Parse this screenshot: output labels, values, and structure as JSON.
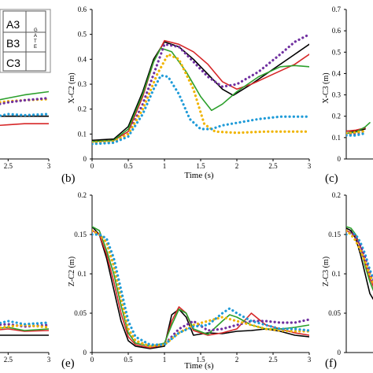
{
  "colors": {
    "black": "#000000",
    "red": "#d62728",
    "green": "#2ca02c",
    "purple": "#7030a0",
    "orange": "#f0b400",
    "cyan": "#1f9bd8"
  },
  "legend_box": {
    "labels": [
      "A3",
      "B3",
      "C3"
    ],
    "gate_letters": [
      "G",
      "A",
      "T",
      "E"
    ]
  },
  "chart_data": [
    {
      "type": "line",
      "panel_label": "(b)",
      "xlabel": "Time (s)",
      "ylabel": "X-C2 (m)",
      "xlim": [
        0,
        3
      ],
      "ylim": [
        0,
        0.6
      ],
      "xticks": [
        "0",
        "0.5",
        "1",
        "1.5",
        "2",
        "2.5",
        "3"
      ],
      "yticks": [
        "0",
        "0.1",
        "0.2",
        "0.3",
        "0.4",
        "0.5",
        "0.6"
      ],
      "series": [
        {
          "color": "black",
          "style": "solid",
          "x": [
            0,
            0.3,
            0.5,
            0.7,
            0.85,
            1.0,
            1.2,
            1.4,
            1.6,
            1.8,
            1.95,
            2.2,
            2.5,
            2.8,
            3.0
          ],
          "y": [
            0.075,
            0.08,
            0.13,
            0.27,
            0.4,
            0.47,
            0.45,
            0.4,
            0.34,
            0.28,
            0.255,
            0.3,
            0.36,
            0.42,
            0.46
          ]
        },
        {
          "color": "red",
          "style": "solid",
          "x": [
            0,
            0.3,
            0.5,
            0.7,
            0.85,
            1.0,
            1.2,
            1.4,
            1.6,
            1.8,
            2.0,
            2.2,
            2.5,
            2.8,
            3.0
          ],
          "y": [
            0.07,
            0.075,
            0.11,
            0.25,
            0.39,
            0.475,
            0.46,
            0.43,
            0.38,
            0.31,
            0.28,
            0.3,
            0.34,
            0.38,
            0.42
          ]
        },
        {
          "color": "green",
          "style": "solid",
          "x": [
            0,
            0.3,
            0.5,
            0.7,
            0.85,
            0.95,
            1.1,
            1.3,
            1.5,
            1.65,
            1.8,
            2.0,
            2.3,
            2.6,
            2.8,
            3.0
          ],
          "y": [
            0.07,
            0.075,
            0.12,
            0.26,
            0.39,
            0.445,
            0.43,
            0.35,
            0.25,
            0.195,
            0.22,
            0.27,
            0.33,
            0.37,
            0.375,
            0.37
          ]
        },
        {
          "color": "purple",
          "style": "dotted",
          "x": [
            0,
            0.3,
            0.5,
            0.7,
            0.9,
            1.0,
            1.2,
            1.4,
            1.6,
            1.8,
            2.0,
            2.3,
            2.6,
            2.8,
            3.0
          ],
          "y": [
            0.065,
            0.07,
            0.1,
            0.22,
            0.38,
            0.46,
            0.45,
            0.39,
            0.33,
            0.29,
            0.3,
            0.35,
            0.42,
            0.47,
            0.5
          ]
        },
        {
          "color": "orange",
          "style": "dotted",
          "x": [
            0,
            0.3,
            0.5,
            0.7,
            0.9,
            1.05,
            1.2,
            1.4,
            1.55,
            1.7,
            2.0,
            2.4,
            2.7,
            3.0
          ],
          "y": [
            0.065,
            0.07,
            0.1,
            0.2,
            0.34,
            0.42,
            0.4,
            0.28,
            0.14,
            0.11,
            0.105,
            0.11,
            0.11,
            0.11
          ]
        },
        {
          "color": "cyan",
          "style": "dotted",
          "x": [
            0,
            0.3,
            0.5,
            0.7,
            0.85,
            0.95,
            1.05,
            1.2,
            1.35,
            1.5,
            1.65,
            1.8,
            2.0,
            2.3,
            2.6,
            3.0
          ],
          "y": [
            0.06,
            0.065,
            0.09,
            0.18,
            0.28,
            0.335,
            0.33,
            0.26,
            0.16,
            0.12,
            0.12,
            0.135,
            0.145,
            0.16,
            0.17,
            0.17
          ]
        }
      ]
    },
    {
      "type": "line",
      "panel_label": "(e)",
      "xlabel": "Time (s)",
      "ylabel": "Z-C2 (m)",
      "xlim": [
        0,
        3
      ],
      "ylim": [
        0,
        0.2
      ],
      "xticks": [
        "0",
        "0.5",
        "1",
        "1.5",
        "2",
        "2.5",
        "3"
      ],
      "yticks": [
        "0",
        "0.05",
        "0.1",
        "0.15",
        "0.2"
      ],
      "series": [
        {
          "color": "black",
          "style": "solid",
          "x": [
            0,
            0.1,
            0.2,
            0.3,
            0.4,
            0.5,
            0.6,
            0.8,
            1.0,
            1.1,
            1.2,
            1.3,
            1.4,
            1.6,
            1.8,
            2.0,
            2.2,
            2.4,
            2.6,
            2.8,
            3.0
          ],
          "y": [
            0.16,
            0.15,
            0.12,
            0.08,
            0.04,
            0.015,
            0.008,
            0.005,
            0.008,
            0.048,
            0.055,
            0.045,
            0.022,
            0.025,
            0.024,
            0.027,
            0.028,
            0.03,
            0.027,
            0.022,
            0.02
          ]
        },
        {
          "color": "red",
          "style": "solid",
          "x": [
            0,
            0.1,
            0.2,
            0.3,
            0.4,
            0.5,
            0.6,
            0.8,
            1.0,
            1.1,
            1.2,
            1.3,
            1.4,
            1.6,
            1.8,
            2.0,
            2.2,
            2.4,
            2.6,
            2.8,
            3.0
          ],
          "y": [
            0.155,
            0.15,
            0.125,
            0.09,
            0.05,
            0.02,
            0.01,
            0.006,
            0.01,
            0.04,
            0.058,
            0.05,
            0.028,
            0.022,
            0.025,
            0.03,
            0.05,
            0.035,
            0.03,
            0.025,
            0.022
          ]
        },
        {
          "color": "green",
          "style": "solid",
          "x": [
            0,
            0.1,
            0.2,
            0.3,
            0.4,
            0.5,
            0.6,
            0.8,
            1.0,
            1.1,
            1.2,
            1.3,
            1.4,
            1.6,
            1.8,
            1.9,
            2.0,
            2.2,
            2.4,
            2.6,
            2.8,
            3.0
          ],
          "y": [
            0.16,
            0.155,
            0.13,
            0.1,
            0.06,
            0.025,
            0.012,
            0.008,
            0.012,
            0.035,
            0.055,
            0.05,
            0.03,
            0.023,
            0.04,
            0.048,
            0.045,
            0.035,
            0.03,
            0.03,
            0.032,
            0.035
          ]
        },
        {
          "color": "purple",
          "style": "dotted",
          "x": [
            0,
            0.1,
            0.2,
            0.3,
            0.4,
            0.5,
            0.6,
            0.8,
            1.0,
            1.2,
            1.4,
            1.6,
            1.8,
            2.0,
            2.2,
            2.4,
            2.6,
            2.8,
            3.0
          ],
          "y": [
            0.155,
            0.15,
            0.14,
            0.11,
            0.07,
            0.03,
            0.015,
            0.008,
            0.01,
            0.03,
            0.04,
            0.028,
            0.03,
            0.035,
            0.04,
            0.04,
            0.038,
            0.038,
            0.042
          ]
        },
        {
          "color": "orange",
          "style": "dotted",
          "x": [
            0,
            0.1,
            0.2,
            0.3,
            0.4,
            0.5,
            0.6,
            0.8,
            1.0,
            1.2,
            1.4,
            1.6,
            1.8,
            2.0,
            2.2,
            2.4,
            2.6,
            2.8,
            3.0
          ],
          "y": [
            0.155,
            0.15,
            0.14,
            0.11,
            0.07,
            0.03,
            0.015,
            0.008,
            0.01,
            0.025,
            0.035,
            0.04,
            0.045,
            0.04,
            0.035,
            0.03,
            0.028,
            0.027,
            0.027
          ]
        },
        {
          "color": "cyan",
          "style": "dotted",
          "x": [
            0,
            0.1,
            0.2,
            0.3,
            0.4,
            0.5,
            0.6,
            0.8,
            1.0,
            1.2,
            1.4,
            1.6,
            1.8,
            1.9,
            2.0,
            2.2,
            2.4,
            2.6,
            2.8,
            3.0
          ],
          "y": [
            0.15,
            0.15,
            0.145,
            0.12,
            0.08,
            0.04,
            0.02,
            0.01,
            0.01,
            0.025,
            0.033,
            0.035,
            0.05,
            0.056,
            0.05,
            0.04,
            0.035,
            0.03,
            0.03,
            0.028
          ]
        }
      ]
    },
    {
      "type": "line",
      "panel_label": "(c)",
      "ylabel": "X-C3 (m)",
      "ylim": [
        0,
        0.7
      ],
      "yticks": [
        "0",
        "0.1",
        "0.2",
        "0.3",
        "0.4",
        "0.5",
        "0.6",
        "0.7"
      ],
      "series": [
        {
          "color": "black",
          "style": "solid",
          "x": [
            0,
            0.1,
            0.2
          ],
          "y": [
            0.13,
            0.13,
            0.14
          ]
        },
        {
          "color": "red",
          "style": "solid",
          "x": [
            0,
            0.1,
            0.2
          ],
          "y": [
            0.13,
            0.135,
            0.145
          ]
        },
        {
          "color": "green",
          "style": "solid",
          "x": [
            0,
            0.1,
            0.2,
            0.25
          ],
          "y": [
            0.12,
            0.125,
            0.15,
            0.17
          ]
        },
        {
          "color": "purple",
          "style": "dotted",
          "x": [
            0,
            0.1,
            0.2
          ],
          "y": [
            0.115,
            0.12,
            0.13
          ]
        },
        {
          "color": "orange",
          "style": "dotted",
          "x": [
            0,
            0.1,
            0.2
          ],
          "y": [
            0.12,
            0.125,
            0.13
          ]
        },
        {
          "color": "cyan",
          "style": "dotted",
          "x": [
            0,
            0.1,
            0.2
          ],
          "y": [
            0.11,
            0.11,
            0.12
          ]
        }
      ]
    },
    {
      "type": "line",
      "panel_label": "(f)",
      "ylabel": "Z-C3 (m)",
      "ylim": [
        0,
        0.2
      ],
      "yticks": [
        "0",
        "0.05",
        "0.1",
        "0.15",
        "0.2"
      ],
      "series": [
        {
          "color": "black",
          "style": "solid",
          "x": [
            0,
            0.05,
            0.1,
            0.15,
            0.2,
            0.25,
            0.3
          ],
          "y": [
            0.158,
            0.155,
            0.145,
            0.125,
            0.1,
            0.075,
            0.065
          ]
        },
        {
          "color": "green",
          "style": "solid",
          "x": [
            0,
            0.05,
            0.1,
            0.15,
            0.2,
            0.25,
            0.3
          ],
          "y": [
            0.16,
            0.158,
            0.15,
            0.135,
            0.11,
            0.09,
            0.075
          ]
        },
        {
          "color": "red",
          "style": "solid",
          "x": [
            0,
            0.05,
            0.1,
            0.15,
            0.2,
            0.25,
            0.3
          ],
          "y": [
            0.155,
            0.152,
            0.148,
            0.135,
            0.115,
            0.095,
            0.08
          ]
        },
        {
          "color": "cyan",
          "style": "dotted",
          "x": [
            0,
            0.05,
            0.1,
            0.15,
            0.2,
            0.25,
            0.3
          ],
          "y": [
            0.15,
            0.152,
            0.15,
            0.14,
            0.125,
            0.105,
            0.09
          ]
        },
        {
          "color": "purple",
          "style": "dotted",
          "x": [
            0,
            0.05,
            0.1,
            0.15,
            0.2,
            0.25,
            0.3
          ],
          "y": [
            0.155,
            0.152,
            0.145,
            0.135,
            0.12,
            0.1,
            0.085
          ]
        },
        {
          "color": "orange",
          "style": "dotted",
          "x": [
            0,
            0.05,
            0.1,
            0.15,
            0.2,
            0.25,
            0.3
          ],
          "y": [
            0.155,
            0.15,
            0.142,
            0.13,
            0.115,
            0.098,
            0.085
          ]
        }
      ]
    },
    {
      "type": "line",
      "panel_label": "",
      "xticks": [
        "2.5",
        "3"
      ],
      "series": [
        {
          "color": "green",
          "style": "solid",
          "x": [
            2.1,
            2.3,
            2.5,
            2.7,
            3.0
          ],
          "y": [
            0.255,
            0.27,
            0.285,
            0.3,
            0.315
          ]
        },
        {
          "color": "black",
          "style": "solid",
          "x": [
            2.1,
            3.0
          ],
          "y": [
            0.2,
            0.2
          ]
        },
        {
          "color": "red",
          "style": "solid",
          "x": [
            2.1,
            2.3,
            2.5,
            2.7,
            3.0
          ],
          "y": [
            0.145,
            0.155,
            0.16,
            0.165,
            0.165
          ]
        },
        {
          "color": "orange",
          "style": "dotted",
          "x": [
            2.1,
            2.3,
            2.5,
            2.7,
            3.0
          ],
          "y": [
            0.24,
            0.26,
            0.27,
            0.275,
            0.28
          ]
        },
        {
          "color": "purple",
          "style": "dotted",
          "x": [
            2.1,
            2.3,
            2.5,
            2.7,
            3.0
          ],
          "y": [
            0.23,
            0.25,
            0.265,
            0.275,
            0.285
          ]
        },
        {
          "color": "cyan",
          "style": "dotted",
          "x": [
            2.1,
            2.3,
            2.5,
            2.7,
            3.0
          ],
          "y": [
            0.185,
            0.195,
            0.21,
            0.205,
            0.21
          ]
        }
      ]
    },
    {
      "type": "line",
      "panel_label": "",
      "xticks": [
        "2.5",
        "3"
      ],
      "series": [
        {
          "color": "black",
          "style": "solid",
          "x": [
            2.1,
            3.0
          ],
          "y": [
            0.022,
            0.022
          ]
        },
        {
          "color": "red",
          "style": "solid",
          "x": [
            2.1,
            2.3,
            2.5,
            2.7,
            3.0
          ],
          "y": [
            0.03,
            0.028,
            0.03,
            0.027,
            0.028
          ]
        },
        {
          "color": "green",
          "style": "solid",
          "x": [
            2.1,
            2.3,
            2.5,
            2.7,
            3.0
          ],
          "y": [
            0.035,
            0.03,
            0.032,
            0.028,
            0.03
          ]
        },
        {
          "color": "purple",
          "style": "dotted",
          "x": [
            2.1,
            2.3,
            2.5,
            2.7,
            3.0
          ],
          "y": [
            0.038,
            0.035,
            0.036,
            0.033,
            0.035
          ]
        },
        {
          "color": "orange",
          "style": "dotted",
          "x": [
            2.1,
            2.3,
            2.5,
            2.7,
            3.0
          ],
          "y": [
            0.033,
            0.03,
            0.033,
            0.035,
            0.032
          ]
        },
        {
          "color": "cyan",
          "style": "dotted",
          "x": [
            2.1,
            2.3,
            2.5,
            2.7,
            3.0
          ],
          "y": [
            0.037,
            0.035,
            0.04,
            0.036,
            0.038
          ]
        }
      ]
    }
  ]
}
